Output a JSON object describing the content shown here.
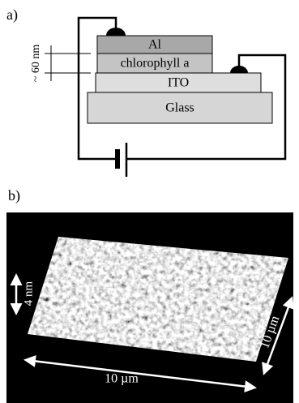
{
  "panel_a": {
    "label": "a)",
    "layers": [
      "Al",
      "chlorophyll a",
      "ITO",
      "Glass"
    ],
    "thickness": "~ 60 nm"
  },
  "panel_b": {
    "label": "b)",
    "height_scale": "4 nm",
    "x_scale": "10 µm",
    "y_scale": "10 µm"
  }
}
